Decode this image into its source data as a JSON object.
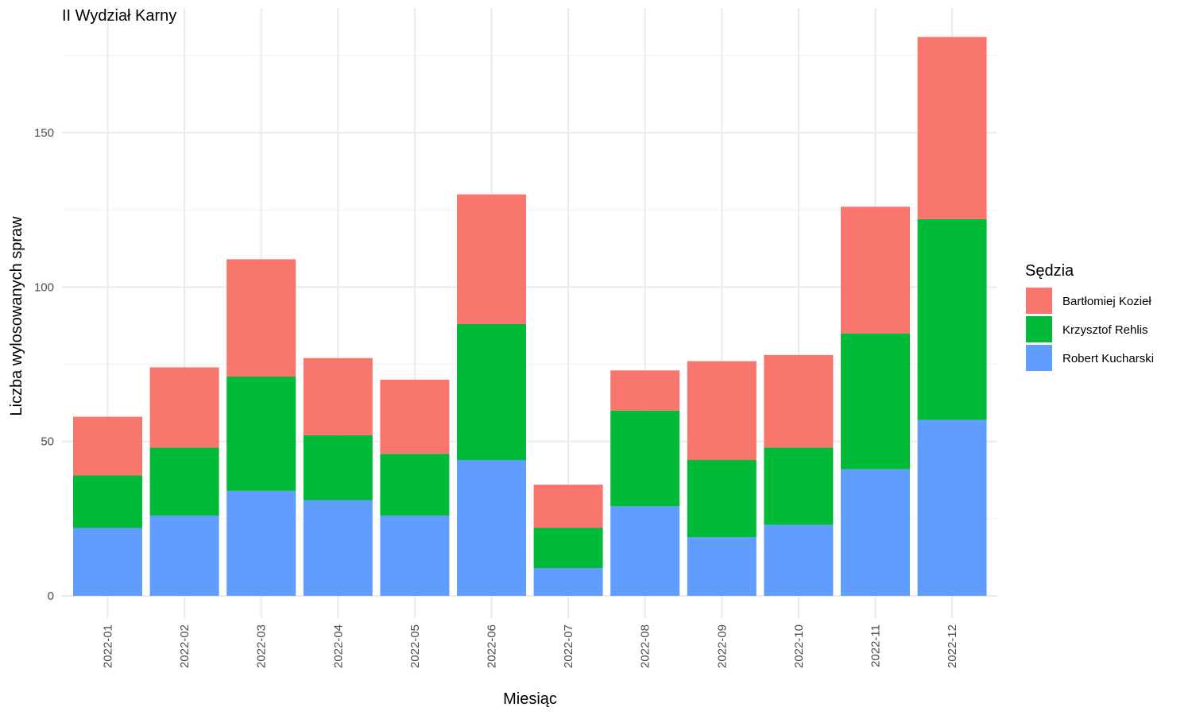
{
  "chart_data": {
    "type": "bar",
    "stacked": true,
    "title": "II Wydział Karny",
    "xlabel": "Miesiąc",
    "ylabel": "Liczba wylosowanych spraw",
    "ylim": [
      0,
      185
    ],
    "yticks": [
      0,
      50,
      100,
      150
    ],
    "grid": true,
    "legend_title": "Sędzia",
    "legend_position": "right",
    "categories": [
      "2022-01",
      "2022-02",
      "2022-03",
      "2022-04",
      "2022-05",
      "2022-06",
      "2022-07",
      "2022-08",
      "2022-09",
      "2022-10",
      "2022-11",
      "2022-12"
    ],
    "series": [
      {
        "name": "Robert Kucharski",
        "color": "#619CFF",
        "values": [
          22,
          26,
          34,
          31,
          26,
          44,
          9,
          29,
          19,
          23,
          41,
          57
        ]
      },
      {
        "name": "Krzysztof Rehlis",
        "color": "#00BA38",
        "values": [
          17,
          22,
          37,
          21,
          20,
          44,
          13,
          31,
          25,
          25,
          44,
          65
        ]
      },
      {
        "name": "Bartłomiej Kozieł",
        "color": "#F8766D",
        "values": [
          19,
          26,
          38,
          25,
          24,
          42,
          14,
          13,
          32,
          30,
          41,
          59
        ]
      }
    ],
    "legend_order": [
      "Bartłomiej Kozieł",
      "Krzysztof Rehlis",
      "Robert Kucharski"
    ]
  }
}
